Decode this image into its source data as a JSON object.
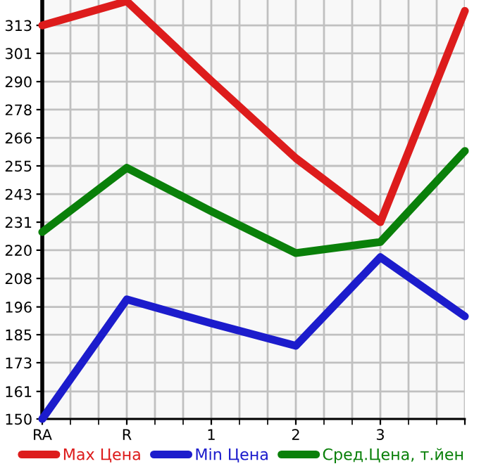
{
  "chart_data": {
    "type": "line",
    "categories": [
      "RA",
      "R",
      "1",
      "2",
      "3",
      null
    ],
    "series": [
      {
        "name": "Max Цена",
        "color": "#dd1c1c",
        "values": [
          313,
          323,
          290,
          258,
          231.5,
          319
        ]
      },
      {
        "name": "Min Цена",
        "color": "#1c1ccc",
        "values": [
          150,
          199.5,
          189.6,
          180.3,
          217,
          192.5
        ]
      },
      {
        "name": "Сред.Цена, т.йен",
        "color": "#0a800a",
        "values": [
          227.4,
          254,
          236,
          218.7,
          223.3,
          261
        ]
      }
    ],
    "ylim": [
      150,
      323.5
    ],
    "yticks": [
      150,
      {
        "value": 161.4,
        "label": "161"
      },
      {
        "value": 173.3,
        "label": "173"
      },
      {
        "value": 184.9,
        "label": "185"
      },
      {
        "value": 196.4,
        "label": "196"
      },
      {
        "value": 208.2,
        "label": "208"
      },
      {
        "value": 219.9,
        "label": "220"
      },
      {
        "value": 231.5,
        "label": "231"
      },
      {
        "value": 243.1,
        "label": "243"
      },
      {
        "value": 254.8,
        "label": "255"
      },
      {
        "value": 266.4,
        "label": "266"
      },
      {
        "value": 278.1,
        "label": "278"
      },
      {
        "value": 289.7,
        "label": "290"
      },
      {
        "value": 301.4,
        "label": "301"
      },
      313
    ],
    "grid": true,
    "legend": "bottom",
    "marker": "none",
    "line_style": "solid"
  }
}
